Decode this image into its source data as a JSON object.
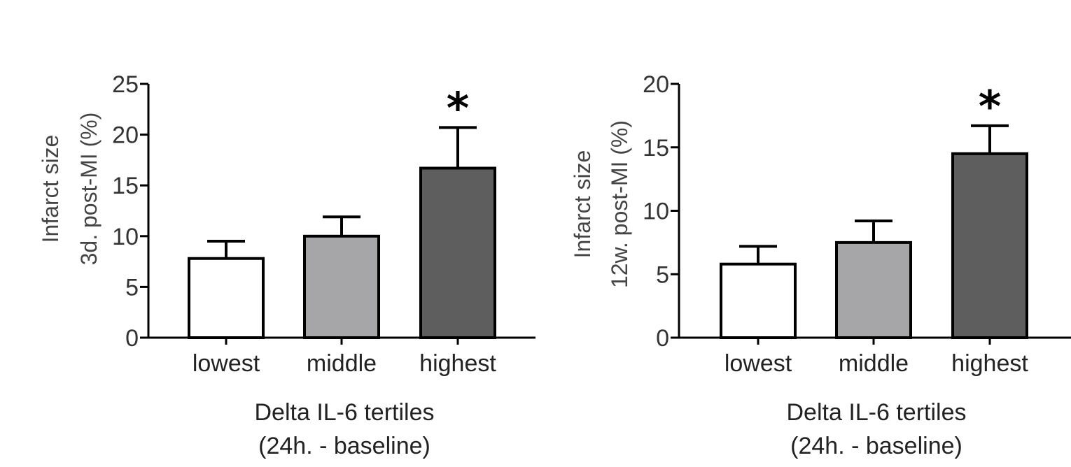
{
  "chart_data": [
    {
      "type": "bar",
      "categories": [
        "lowest",
        "middle",
        "highest"
      ],
      "values": [
        7.8,
        10.0,
        16.7
      ],
      "errors": [
        1.7,
        1.9,
        4.0
      ],
      "colors": [
        "#ffffff",
        "#a6a6a8",
        "#5e5e5e"
      ],
      "significance": [
        "",
        "",
        "*"
      ],
      "ylim": [
        0,
        25
      ],
      "yticks": [
        "0",
        "5",
        "10",
        "15",
        "20",
        "25"
      ],
      "ylabel_lines": [
        "Infarct size",
        "3d. post-MI (%)"
      ],
      "xlabel_lines": [
        "Delta IL-6 tertiles",
        "(24h. - baseline)"
      ]
    },
    {
      "type": "bar",
      "categories": [
        "lowest",
        "middle",
        "highest"
      ],
      "values": [
        5.8,
        7.5,
        14.5
      ],
      "errors": [
        1.4,
        1.7,
        2.2
      ],
      "colors": [
        "#ffffff",
        "#a6a6a8",
        "#5e5e5e"
      ],
      "significance": [
        "",
        "",
        "*"
      ],
      "ylim": [
        0,
        20
      ],
      "yticks": [
        "0",
        "5",
        "10",
        "15",
        "20"
      ],
      "ylabel_lines": [
        "Infarct size",
        "12w. post-MI (%)"
      ],
      "xlabel_lines": [
        "Delta IL-6 tertiles",
        "(24h. - baseline)"
      ]
    }
  ]
}
